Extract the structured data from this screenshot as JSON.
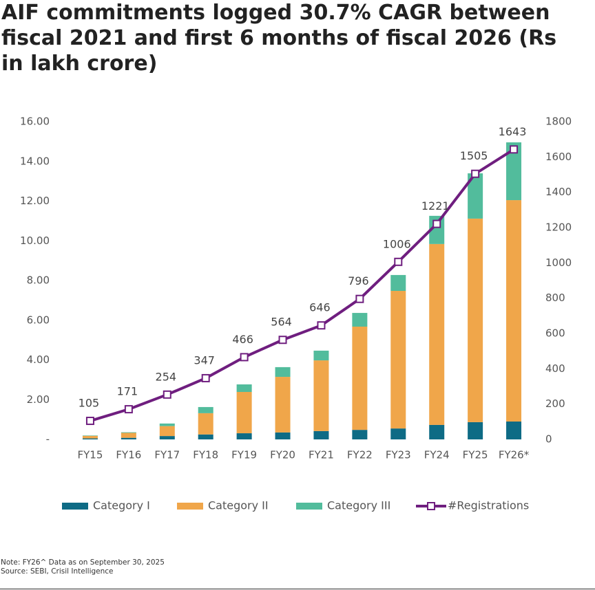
{
  "chart_data": {
    "type": "bar-line",
    "title": "AIF commitments logged 30.7% CAGR between fiscal 2021 and first 6 months of fiscal 2026 (Rs in lakh crore)",
    "categories": [
      "FY15",
      "FY16",
      "FY17",
      "FY18",
      "FY19",
      "FY20",
      "FY21",
      "FY22",
      "FY23",
      "FY24",
      "FY25",
      "FY26*"
    ],
    "series": [
      {
        "name": "Category I",
        "color": "#0e6b85",
        "values": [
          0.05,
          0.08,
          0.17,
          0.25,
          0.31,
          0.35,
          0.42,
          0.48,
          0.55,
          0.73,
          0.87,
          0.9
        ]
      },
      {
        "name": "Category II",
        "color": "#f0a64a",
        "values": [
          0.13,
          0.25,
          0.5,
          1.07,
          2.08,
          2.8,
          3.56,
          5.2,
          6.93,
          9.11,
          10.25,
          11.15
        ]
      },
      {
        "name": "Category III",
        "color": "#52bc9c",
        "values": [
          0.02,
          0.03,
          0.13,
          0.31,
          0.38,
          0.49,
          0.49,
          0.69,
          0.8,
          1.42,
          2.28,
          2.91
        ]
      },
      {
        "name": "#Registrations",
        "color": "#6f1e7f",
        "axis": "y2",
        "values": [
          105,
          171,
          254,
          347,
          466,
          564,
          646,
          796,
          1006,
          1221,
          1505,
          1643
        ]
      }
    ],
    "ylim": [
      0,
      16
    ],
    "yticks": [
      {
        "value": 0,
        "label": "-"
      },
      {
        "value": 2,
        "label": "2.00"
      },
      {
        "value": 4,
        "label": "4.00"
      },
      {
        "value": 6,
        "label": "6.00"
      },
      {
        "value": 8,
        "label": "8.00"
      },
      {
        "value": 10,
        "label": "10.00"
      },
      {
        "value": 12,
        "label": "12.00"
      },
      {
        "value": 14,
        "label": "14.00"
      },
      {
        "value": 16,
        "label": "16.00"
      }
    ],
    "y2lim": [
      0,
      1800
    ],
    "y2ticks": [
      0,
      200,
      400,
      600,
      800,
      1000,
      1200,
      1400,
      1600,
      1800
    ],
    "note": "Note: FY26^ Data as on September 30, 2025",
    "source": "Source: SEBI, Crisil Intelligence"
  }
}
